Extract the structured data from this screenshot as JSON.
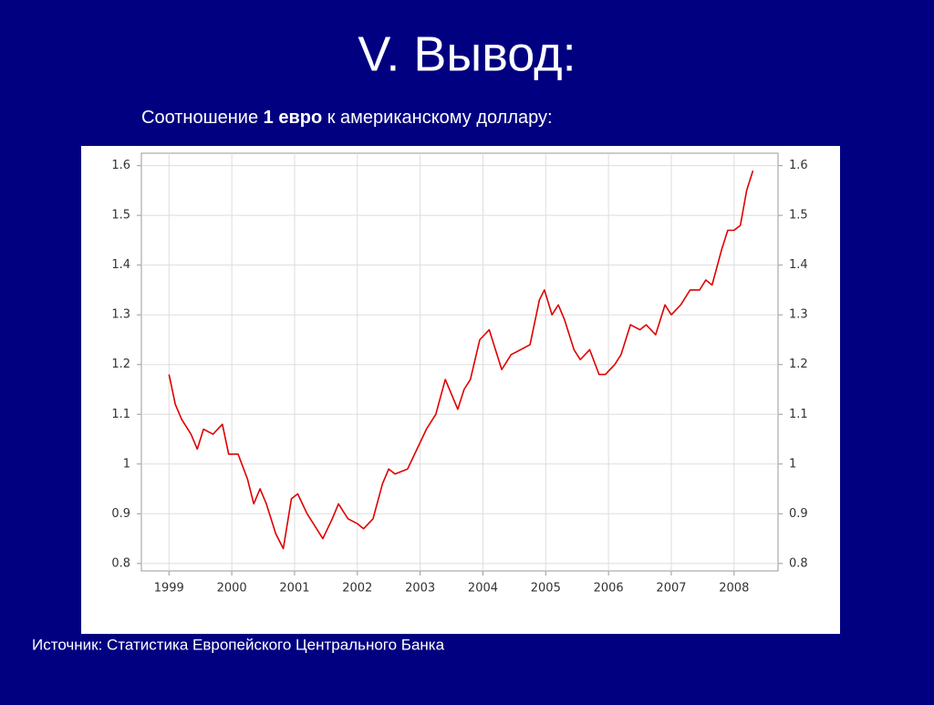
{
  "slide": {
    "title": "V. Вывод:",
    "subtitle": [
      "Соотношение ",
      "1 евро",
      " к американскому доллару:"
    ],
    "source": "Источник: Статистика Европейского Центрального Банка"
  },
  "chart_data": {
    "type": "line",
    "color": "#e00000",
    "grid": true,
    "x": [
      1999.0,
      1999.1,
      1999.2,
      1999.35,
      1999.45,
      1999.55,
      1999.7,
      1999.85,
      1999.95,
      2000.1,
      2000.25,
      2000.35,
      2000.45,
      2000.55,
      2000.7,
      2000.82,
      2000.95,
      2001.05,
      2001.2,
      2001.3,
      2001.45,
      2001.6,
      2001.7,
      2001.85,
      2002.0,
      2002.1,
      2002.25,
      2002.4,
      2002.5,
      2002.6,
      2002.8,
      2002.95,
      2003.1,
      2003.25,
      2003.4,
      2003.5,
      2003.6,
      2003.7,
      2003.8,
      2003.95,
      2004.1,
      2004.2,
      2004.3,
      2004.45,
      2004.6,
      2004.75,
      2004.9,
      2004.98,
      2005.1,
      2005.2,
      2005.3,
      2005.45,
      2005.55,
      2005.7,
      2005.85,
      2005.95,
      2006.1,
      2006.2,
      2006.35,
      2006.5,
      2006.6,
      2006.75,
      2006.9,
      2007.0,
      2007.15,
      2007.3,
      2007.45,
      2007.55,
      2007.65,
      2007.8,
      2007.9,
      2008.0,
      2008.1,
      2008.2,
      2008.3
    ],
    "values": [
      1.18,
      1.12,
      1.09,
      1.06,
      1.03,
      1.07,
      1.06,
      1.08,
      1.02,
      1.02,
      0.97,
      0.92,
      0.95,
      0.92,
      0.86,
      0.83,
      0.93,
      0.94,
      0.9,
      0.88,
      0.85,
      0.89,
      0.92,
      0.89,
      0.88,
      0.87,
      0.89,
      0.96,
      0.99,
      0.98,
      0.99,
      1.03,
      1.07,
      1.1,
      1.17,
      1.14,
      1.11,
      1.15,
      1.17,
      1.25,
      1.27,
      1.23,
      1.19,
      1.22,
      1.23,
      1.24,
      1.33,
      1.35,
      1.3,
      1.32,
      1.29,
      1.23,
      1.21,
      1.23,
      1.18,
      1.18,
      1.2,
      1.22,
      1.28,
      1.27,
      1.28,
      1.26,
      1.32,
      1.3,
      1.32,
      1.35,
      1.35,
      1.37,
      1.36,
      1.43,
      1.47,
      1.47,
      1.48,
      1.55,
      1.59
    ],
    "xlim": [
      1998.56,
      2008.7
    ],
    "ylim": [
      0.785,
      1.625
    ],
    "xticks": [
      1999,
      2000,
      2001,
      2002,
      2003,
      2004,
      2005,
      2006,
      2007,
      2008
    ],
    "yticks": [
      0.8,
      0.9,
      1,
      1.1,
      1.2,
      1.3,
      1.4,
      1.5,
      1.6
    ]
  }
}
